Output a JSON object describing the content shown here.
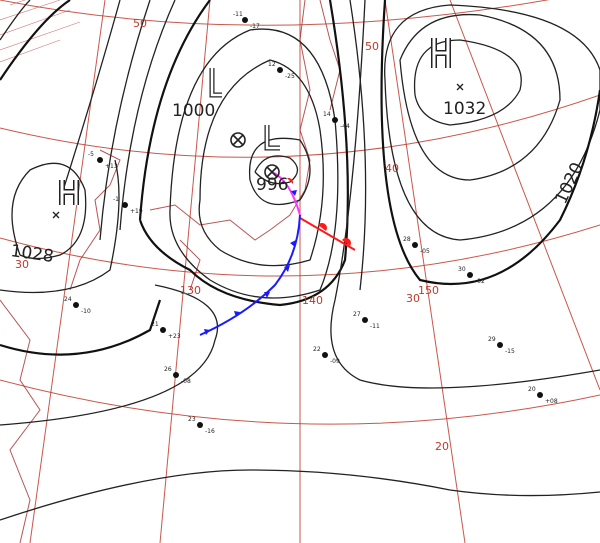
{
  "map": {
    "grid_labels": {
      "lat": [
        "50",
        "50",
        "40",
        "30",
        "30",
        "20"
      ],
      "lon": [
        "130",
        "140",
        "150"
      ]
    },
    "pressure_systems": [
      {
        "type": "L",
        "label": "L",
        "value": "996",
        "symbol": "cross-circle"
      },
      {
        "type": "L",
        "label": "L",
        "value": "",
        "symbol": "cross-circle"
      },
      {
        "type": "H",
        "label": "H",
        "value": "1032",
        "symbol": "cross"
      },
      {
        "type": "H",
        "label": "H",
        "value": "1028",
        "symbol": "cross"
      }
    ],
    "isobar_labels": [
      "1000",
      "1020"
    ],
    "fronts": [
      {
        "type": "cold",
        "color": "#1a1aff"
      },
      {
        "type": "warm",
        "color": "#ff1a1a"
      },
      {
        "type": "occluded",
        "color": "#ff33ff"
      }
    ],
    "stations": [
      {
        "t": "-11",
        "d": "-17"
      },
      {
        "t": "-5",
        "d": "+13"
      },
      {
        "t": "-1",
        "d": "+19"
      },
      {
        "t": "21",
        "d": "+23"
      },
      {
        "t": "24",
        "d": "-10"
      },
      {
        "t": "26",
        "d": "-08"
      },
      {
        "t": "22",
        "d": "-09"
      },
      {
        "t": "27",
        "d": "-11"
      },
      {
        "t": "28",
        "d": "-05"
      },
      {
        "t": "29",
        "d": "-15"
      },
      {
        "t": "30",
        "d": "-02"
      },
      {
        "t": "20",
        "d": "+08"
      },
      {
        "t": "23",
        "d": "-16"
      },
      {
        "t": "12",
        "d": "-25"
      },
      {
        "t": "14",
        "d": "-44"
      }
    ]
  }
}
